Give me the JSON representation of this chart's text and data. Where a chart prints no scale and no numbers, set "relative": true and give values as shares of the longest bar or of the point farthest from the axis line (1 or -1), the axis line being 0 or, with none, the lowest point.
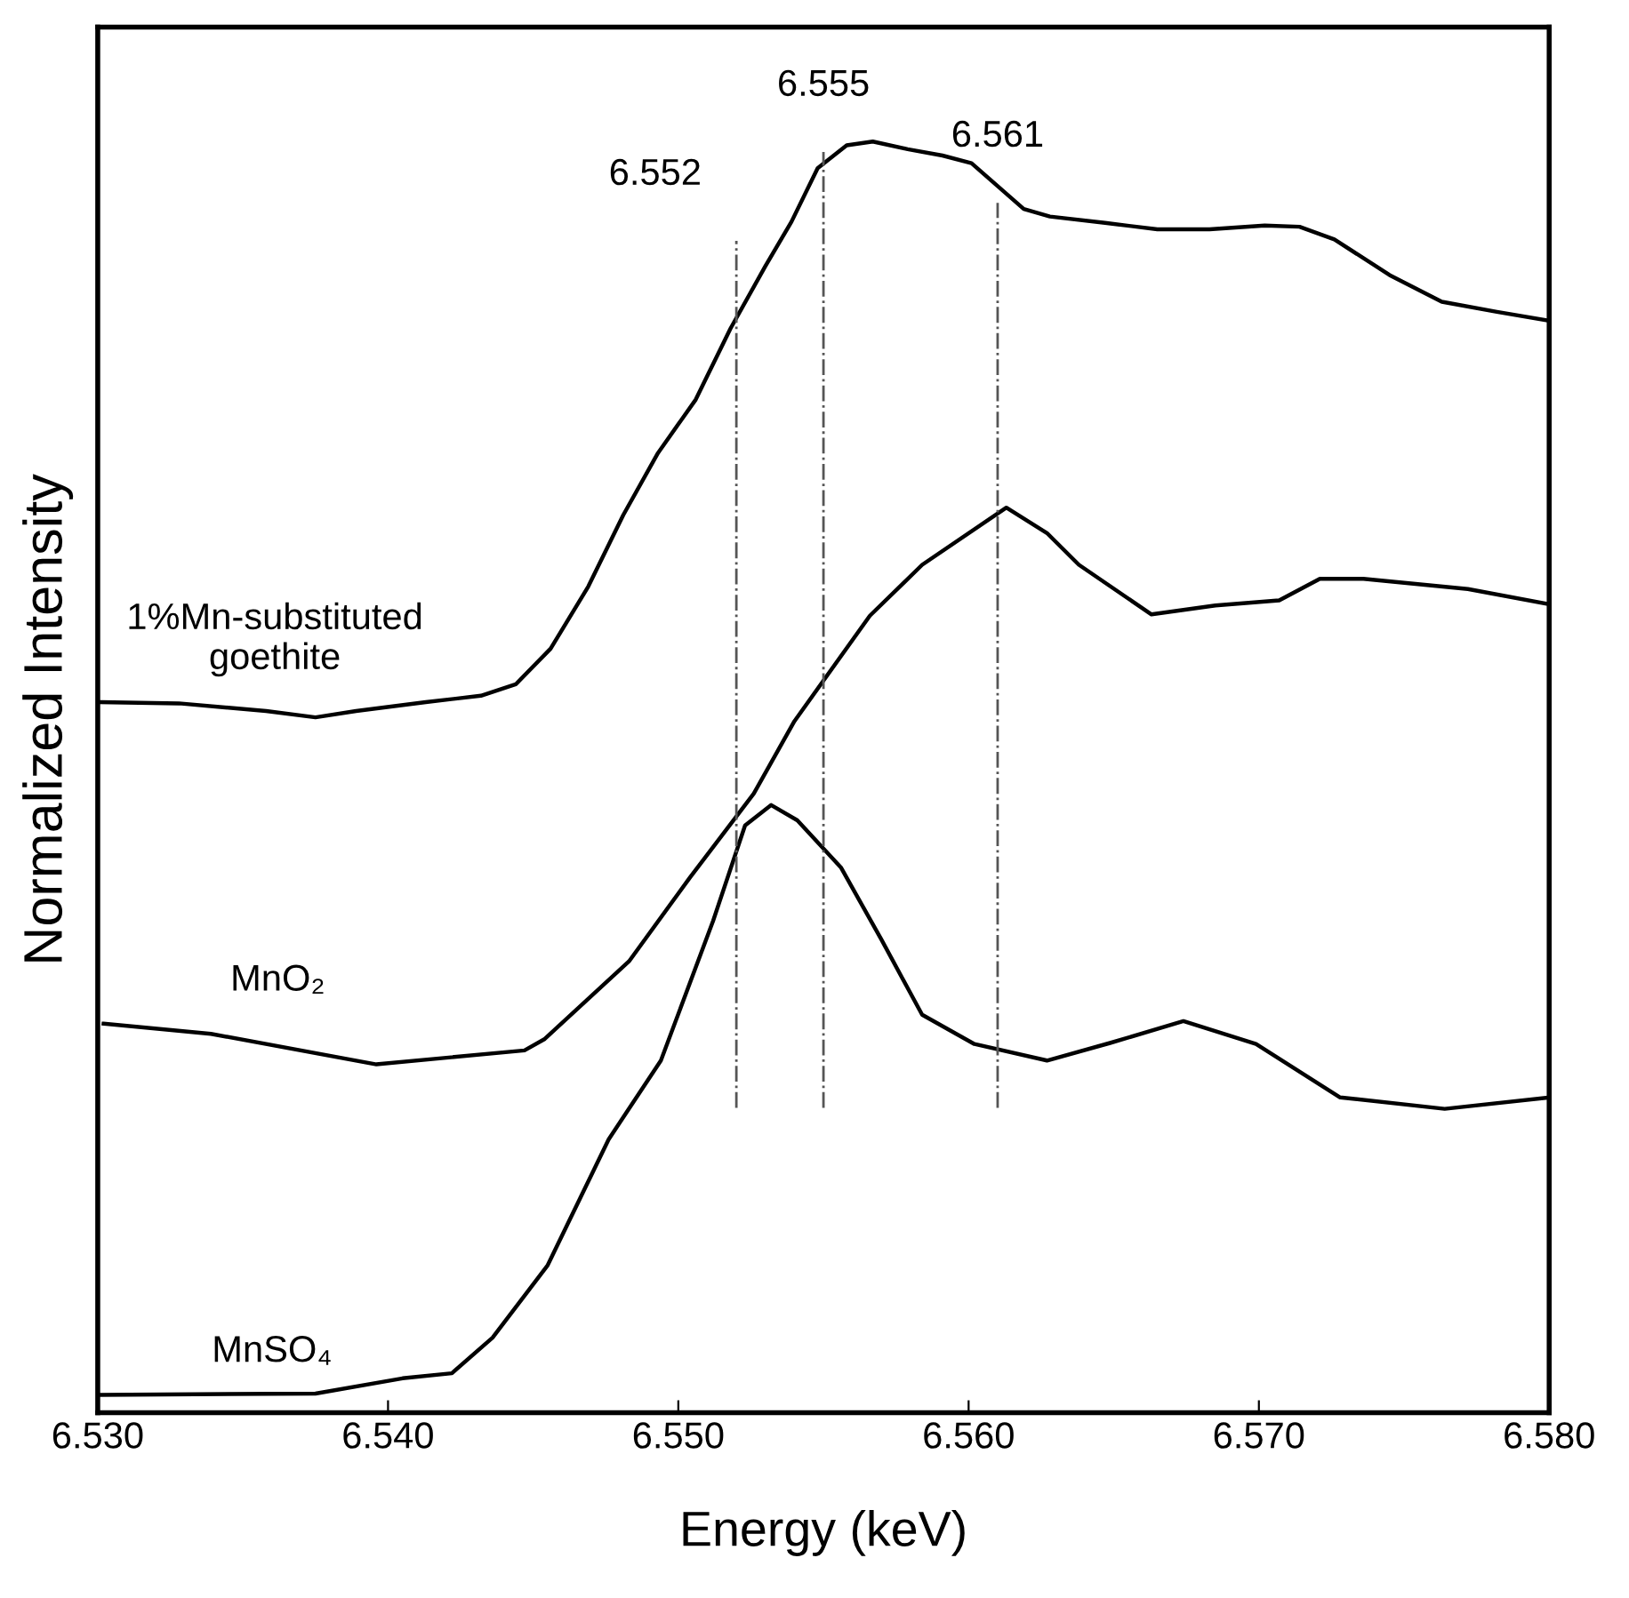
{
  "chart_data": {
    "type": "line",
    "relative": true,
    "xlabel": "Energy (keV)",
    "ylabel": "Normalized Intensity",
    "xlim": [
      6.53,
      6.58
    ],
    "xticks": [
      {
        "value": 6.53,
        "label": "6.530"
      },
      {
        "value": 6.54,
        "label": "6.540"
      },
      {
        "value": 6.55,
        "label": "6.550"
      },
      {
        "value": 6.56,
        "label": "6.560"
      },
      {
        "value": 6.57,
        "label": "6.570"
      },
      {
        "value": 6.58,
        "label": "6.580"
      }
    ],
    "tick_labels": "x",
    "grid": false,
    "legend": false,
    "marker": "none",
    "line_style": "solid",
    "series": [
      {
        "name": "1%Mn-substituted\ngoethite",
        "color": "#000000",
        "x": [
          6.5301,
          6.5328,
          6.5358,
          6.5375,
          6.5389,
          6.5413,
          6.5432,
          6.5444,
          6.5456,
          6.5469,
          6.5481,
          6.5493,
          6.5506,
          6.5518,
          6.553,
          6.5539,
          6.5548,
          6.5558,
          6.5567,
          6.5579,
          6.5591,
          6.5601,
          6.561,
          6.5619,
          6.5628,
          6.5647,
          6.5665,
          6.5683,
          6.5702,
          6.5714,
          6.5726,
          6.5745,
          6.5763,
          6.5782,
          6.58
        ],
        "values": [
          0.559,
          0.558,
          0.552,
          0.547,
          0.552,
          0.559,
          0.564,
          0.573,
          0.601,
          0.65,
          0.706,
          0.755,
          0.797,
          0.853,
          0.902,
          0.937,
          0.979,
          0.997,
          1,
          0.994,
          0.989,
          0.983,
          0.965,
          0.947,
          0.941,
          0.936,
          0.931,
          0.931,
          0.934,
          0.933,
          0.923,
          0.895,
          0.874,
          0.866,
          0.859
        ]
      },
      {
        "name": "MnO₂",
        "color": "#000000",
        "x": [
          6.5302,
          6.5339,
          6.5396,
          6.5447,
          6.5454,
          6.5483,
          6.5504,
          6.5526,
          6.554,
          6.5566,
          6.5584,
          6.5613,
          6.5627,
          6.5638,
          6.5663,
          6.5685,
          6.5707,
          6.5721,
          6.5736,
          6.5772,
          6.58
        ],
        "values": [
          0.306,
          0.298,
          0.274,
          0.285,
          0.294,
          0.355,
          0.421,
          0.487,
          0.544,
          0.627,
          0.667,
          0.712,
          0.692,
          0.667,
          0.628,
          0.635,
          0.639,
          0.656,
          0.656,
          0.648,
          0.636
        ]
      },
      {
        "name": "MnSO₄",
        "color": "#000000",
        "x": [
          6.53,
          6.5375,
          6.5405,
          6.5422,
          6.5436,
          6.5455,
          6.5476,
          6.5494,
          6.5512,
          6.5523,
          6.5532,
          6.5541,
          6.5556,
          6.557,
          6.5584,
          6.5602,
          6.5627,
          6.5649,
          6.5674,
          6.5699,
          6.5728,
          6.5764,
          6.58
        ],
        "values": [
          0.014,
          0.015,
          0.027,
          0.031,
          0.059,
          0.116,
          0.215,
          0.277,
          0.387,
          0.462,
          0.478,
          0.466,
          0.429,
          0.372,
          0.313,
          0.29,
          0.277,
          0.291,
          0.308,
          0.29,
          0.248,
          0.239,
          0.248
        ]
      }
    ],
    "ref_lines": [
      {
        "axis": "x",
        "value": 6.552,
        "label": "6.552",
        "color": "#555555",
        "line_style": "dashdot"
      },
      {
        "axis": "x",
        "value": 6.555,
        "label": "6.555",
        "color": "#555555",
        "line_style": "dashdot"
      },
      {
        "axis": "x",
        "value": 6.561,
        "label": "6.561",
        "color": "#555555",
        "line_style": "dashdot"
      }
    ]
  }
}
